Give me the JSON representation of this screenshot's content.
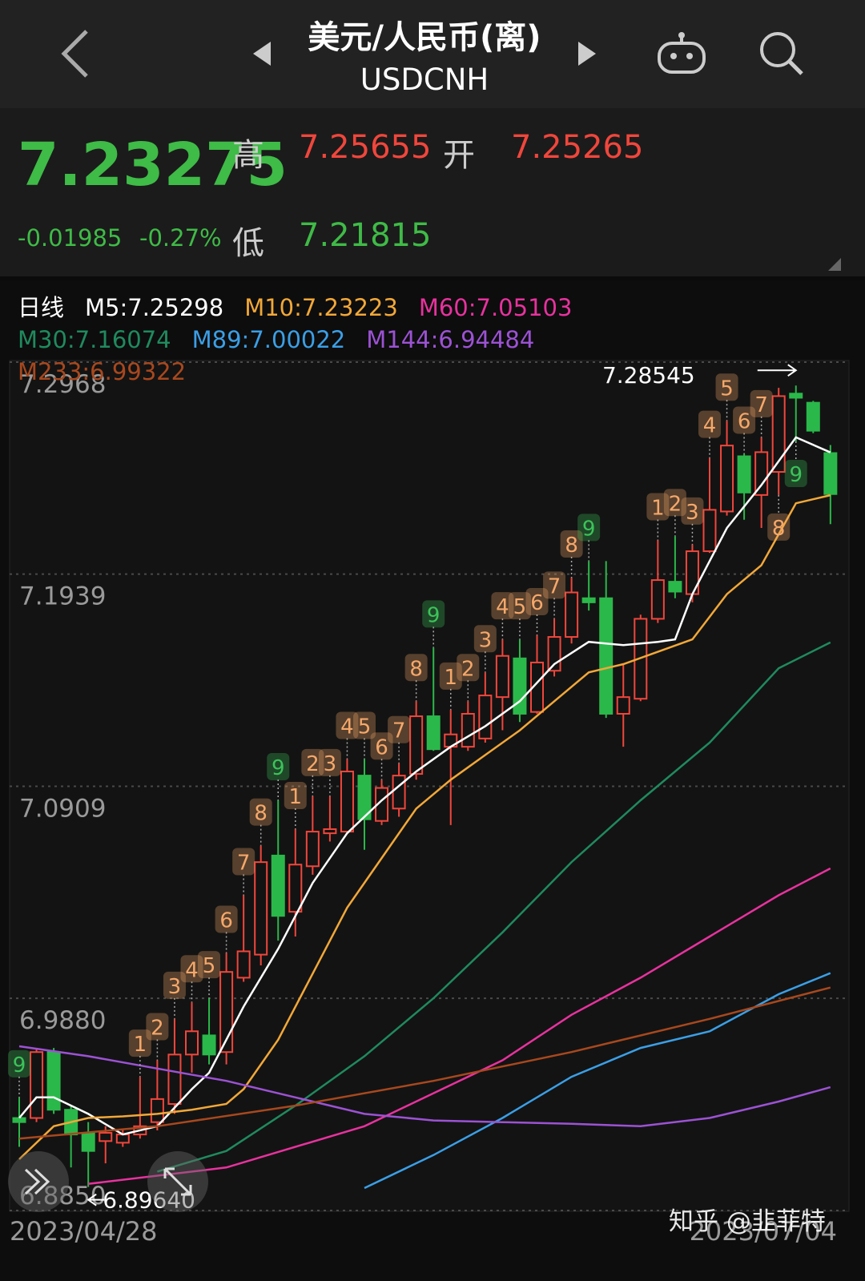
{
  "header": {
    "title": "美元/人民币(离)",
    "symbol": "USDCNH"
  },
  "quote": {
    "price": "7.23275",
    "high_label": "高",
    "high": "7.25655",
    "open_label": "开",
    "open": "7.25265",
    "change": "-0.01985",
    "change_pct": "-0.27%",
    "low_label": "低",
    "low": "7.21815"
  },
  "watermark": "知乎 @韭菲特",
  "chart_data": {
    "type": "candlestick",
    "period": "日线",
    "up_color": "#f0463c",
    "down_color": "#2bb84a",
    "ylim": [
      6.885,
      7.2968
    ],
    "yticks": [
      7.2968,
      7.1939,
      7.0909,
      {
        "value": 6.988,
        "label": "6.9880"
      },
      {
        "value": 6.885,
        "label": "6.8850"
      }
    ],
    "grid": true,
    "categories": [
      "2023/04/28",
      null,
      null,
      null,
      null,
      null,
      null,
      null,
      null,
      null,
      null,
      null,
      null,
      null,
      null,
      null,
      null,
      null,
      null,
      null,
      null,
      null,
      null,
      null,
      null,
      null,
      null,
      null,
      null,
      null,
      null,
      null,
      null,
      null,
      null,
      null,
      null,
      null,
      null,
      null,
      null,
      null,
      null,
      null,
      null,
      null,
      null,
      "2023/07/04"
    ],
    "open": [
      6.9299,
      6.9299,
      6.9619,
      6.9339,
      6.9227,
      6.9187,
      6.9179,
      6.9219,
      6.9279,
      6.9367,
      6.9607,
      6.97,
      6.9619,
      6.998,
      7.0092,
      7.0573,
      7.03,
      7.0521,
      7.0681,
      7.0689,
      7.0961,
      7.0741,
      7.0801,
      7.0969,
      7.1249,
      7.1101,
      7.1101,
      7.1141,
      7.1342,
      7.153,
      7.127,
      7.147,
      7.1634,
      7.1822,
      7.1822,
      7.1261,
      7.1334,
      7.1722,
      7.1902,
      7.1842,
      7.205,
      7.2243,
      7.2511,
      7.2323,
      7.2435,
      7.2815,
      7.2771,
      7.25265
    ],
    "high": [
      6.9399,
      6.9639,
      6.9639,
      6.9359,
      6.9279,
      6.9259,
      6.9247,
      6.9499,
      6.9579,
      6.978,
      6.986,
      6.988,
      7.01,
      7.038,
      7.0621,
      7.0841,
      7.0701,
      7.0861,
      7.0861,
      7.1041,
      7.1041,
      7.0941,
      7.1021,
      7.1322,
      7.1582,
      7.1281,
      7.1322,
      7.1462,
      7.1622,
      7.1622,
      7.1642,
      7.1722,
      7.1922,
      7.2002,
      7.2002,
      7.1502,
      7.1742,
      7.2103,
      7.2123,
      7.2082,
      7.2503,
      7.2683,
      7.2523,
      7.2603,
      7.2843,
      7.28545,
      7.278,
      7.25655
    ],
    "low": [
      6.9159,
      6.9279,
      6.9319,
      6.9059,
      6.8964,
      6.9079,
      6.9159,
      6.9199,
      6.9239,
      6.9319,
      6.9519,
      6.9559,
      6.9559,
      6.996,
      7.004,
      7.016,
      7.018,
      7.048,
      7.0641,
      7.0681,
      7.0601,
      7.0721,
      7.0761,
      7.0941,
      7.1081,
      7.0721,
      7.1081,
      7.1121,
      7.1181,
      7.1221,
      7.1261,
      7.1442,
      7.1602,
      7.1762,
      7.1241,
      7.1101,
      7.1322,
      7.1702,
      7.1822,
      7.1802,
      7.2042,
      7.2223,
      7.2203,
      7.2163,
      7.2323,
      7.2583,
      7.2623,
      7.21815
    ],
    "close": [
      6.9279,
      6.9619,
      6.9339,
      6.9219,
      6.9139,
      6.9227,
      6.9219,
      6.9259,
      6.9391,
      6.9607,
      6.972,
      6.9607,
      7.0008,
      7.0108,
      7.0541,
      7.028,
      7.0529,
      7.0689,
      7.0701,
      7.0981,
      7.0749,
      7.0901,
      7.0961,
      7.1249,
      7.1089,
      7.1161,
      7.1261,
      7.135,
      7.1542,
      7.1261,
      7.151,
      7.1634,
      7.185,
      7.1802,
      7.1261,
      7.1342,
      7.1722,
      7.191,
      7.1854,
      7.205,
      7.2251,
      7.2563,
      7.2335,
      7.2531,
      7.2803,
      7.2795,
      7.2635,
      7.23275
    ],
    "series": [
      {
        "name": "M5:7.25298",
        "color": "#ffffff",
        "x": [
          0,
          1,
          2,
          4,
          6,
          8,
          10,
          11,
          13,
          15,
          17,
          19,
          21,
          23,
          25,
          27,
          29,
          31,
          33,
          35,
          37,
          38,
          39,
          41,
          43,
          45,
          47
        ],
        "values": [
          6.9299,
          6.9399,
          6.9399,
          6.9319,
          6.9219,
          6.9259,
          6.9439,
          6.9519,
          6.984,
          7.012,
          7.044,
          7.0681,
          7.0841,
          7.0981,
          7.1101,
          7.1201,
          7.1322,
          7.1502,
          7.161,
          7.1594,
          7.161,
          7.1622,
          7.1842,
          7.2163,
          7.2371,
          7.2603,
          7.25298
        ]
      },
      {
        "name": "M10:7.23223",
        "color": "#f2a838",
        "x": [
          0,
          2,
          4,
          6,
          8,
          10,
          12,
          13,
          15,
          17,
          19,
          21,
          23,
          25,
          27,
          29,
          31,
          33,
          35,
          37,
          39,
          41,
          43,
          45,
          47
        ],
        "values": [
          6.9099,
          6.9259,
          6.9299,
          6.9307,
          6.9319,
          6.9339,
          6.9367,
          6.9439,
          6.9679,
          7.0,
          7.032,
          7.0561,
          7.0801,
          7.0941,
          7.1061,
          7.1181,
          7.1322,
          7.1462,
          7.1502,
          7.1562,
          7.1622,
          7.1842,
          7.1982,
          7.2283,
          7.23223
        ]
      },
      {
        "name": "M60:7.05103",
        "color": "#e8329e",
        "x": [
          4,
          12,
          20,
          28,
          32,
          36,
          40,
          44,
          47
        ],
        "values": [
          6.8979,
          6.9059,
          6.9259,
          6.9579,
          6.98,
          6.998,
          7.018,
          7.038,
          7.05103
        ]
      },
      {
        "name": "M30:7.16074",
        "color": "#1f8a5e",
        "x": [
          8,
          12,
          16,
          20,
          24,
          28,
          32,
          36,
          40,
          44,
          47
        ],
        "values": [
          6.9039,
          6.9139,
          6.9359,
          6.9599,
          6.988,
          7.02,
          7.0541,
          7.0841,
          7.1121,
          7.1482,
          7.16074
        ]
      },
      {
        "name": "M89:7.00022",
        "color": "#3b9fe6",
        "x": [
          20,
          24,
          28,
          32,
          36,
          40,
          44,
          47
        ],
        "values": [
          6.8959,
          6.9119,
          6.9299,
          6.9499,
          6.9639,
          6.972,
          6.99,
          7.00022
        ]
      },
      {
        "name": "M144:6.94484",
        "color": "#9c52d4",
        "x": [
          0,
          4,
          8,
          12,
          16,
          20,
          24,
          28,
          32,
          36,
          40,
          44,
          47
        ],
        "values": [
          6.9647,
          6.9599,
          6.9539,
          6.9479,
          6.9399,
          6.9319,
          6.9287,
          6.9279,
          6.9271,
          6.9259,
          6.9299,
          6.9379,
          6.94484
        ]
      },
      {
        "name": "M233:6.99322",
        "color": "#a8481e",
        "x": [
          0,
          8,
          16,
          24,
          32,
          40,
          47
        ],
        "values": [
          6.9199,
          6.9259,
          6.9359,
          6.9479,
          6.9619,
          6.978,
          6.99322
        ]
      }
    ],
    "td": [
      {
        "index": 0,
        "label": "9",
        "color": "#3cc35a"
      },
      {
        "index": 7,
        "label": "1",
        "color": "#f5a86a"
      },
      {
        "index": 8,
        "label": "2",
        "color": "#f5a86a"
      },
      {
        "index": 9,
        "label": "3",
        "color": "#f5a86a"
      },
      {
        "index": 10,
        "label": "4",
        "color": "#f5a86a"
      },
      {
        "index": 11,
        "label": "5",
        "color": "#f5a86a"
      },
      {
        "index": 12,
        "label": "6",
        "color": "#f5a86a"
      },
      {
        "index": 13,
        "label": "7",
        "color": "#f5a86a"
      },
      {
        "index": 14,
        "label": "8",
        "color": "#f5a86a"
      },
      {
        "index": 15,
        "label": "9",
        "color": "#3cc35a"
      },
      {
        "index": 16,
        "label": "1",
        "color": "#f5a86a"
      },
      {
        "index": 17,
        "label": "2",
        "color": "#f5a86a"
      },
      {
        "index": 18,
        "label": "3",
        "color": "#f5a86a"
      },
      {
        "index": 19,
        "label": "4",
        "color": "#f5a86a"
      },
      {
        "index": 20,
        "label": "5",
        "color": "#f5a86a"
      },
      {
        "index": 21,
        "label": "6",
        "color": "#f5a86a"
      },
      {
        "index": 22,
        "label": "7",
        "color": "#f5a86a"
      },
      {
        "index": 23,
        "label": "8",
        "color": "#f5a86a"
      },
      {
        "index": 24,
        "label": "9",
        "color": "#3cc35a"
      },
      {
        "index": 25,
        "label": "1",
        "color": "#f5a86a"
      },
      {
        "index": 26,
        "label": "2",
        "color": "#f5a86a"
      },
      {
        "index": 27,
        "label": "3",
        "color": "#f5a86a"
      },
      {
        "index": 28,
        "label": "4",
        "color": "#f5a86a"
      },
      {
        "index": 29,
        "label": "5",
        "color": "#f5a86a"
      },
      {
        "index": 30,
        "label": "6",
        "color": "#f5a86a"
      },
      {
        "index": 31,
        "label": "7",
        "color": "#f5a86a"
      },
      {
        "index": 32,
        "label": "8",
        "color": "#f5a86a"
      },
      {
        "index": 33,
        "label": "9",
        "color": "#3cc35a"
      },
      {
        "index": 37,
        "label": "1",
        "color": "#f5a86a"
      },
      {
        "index": 38,
        "label": "2",
        "color": "#f5a86a"
      },
      {
        "index": 39,
        "label": "3",
        "color": "#f5a86a"
      },
      {
        "index": 40,
        "label": "4",
        "color": "#f5a86a"
      },
      {
        "index": 41,
        "label": "5",
        "color": "#f5a86a"
      },
      {
        "index": 42,
        "label": "6",
        "color": "#f5a86a"
      },
      {
        "index": 43,
        "label": "7",
        "color": "#f5a86a"
      },
      {
        "index": 44,
        "label": "8",
        "color": "#f5a86a",
        "below": true
      },
      {
        "index": 45,
        "label": "9",
        "color": "#3cc35a",
        "below": true
      }
    ],
    "max_marker": {
      "index": 45,
      "value": 7.28545
    },
    "min_marker": {
      "index": 4,
      "value": 6.8964,
      "label": "6.89640"
    }
  }
}
